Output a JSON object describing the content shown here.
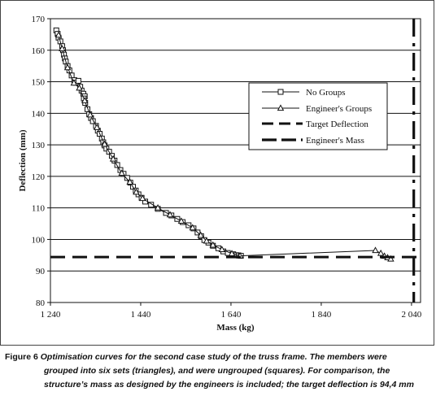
{
  "chart_data": {
    "type": "line",
    "xlabel": "Mass (kg)",
    "ylabel": "Deflection (mm)",
    "xlim": [
      1240,
      2060
    ],
    "ylim": [
      80,
      170
    ],
    "xticks": [
      1240,
      1440,
      1640,
      1840,
      2040
    ],
    "xtick_labels": [
      "1 240",
      "1 440",
      "1 640",
      "1 840",
      "2 040"
    ],
    "yticks": [
      80,
      90,
      100,
      110,
      120,
      130,
      140,
      150,
      160,
      170
    ],
    "grid": "horizontal",
    "legend_position": "right",
    "series": [
      {
        "name": "No Groups",
        "marker": "square",
        "points": [
          [
            1253,
            166.3
          ],
          [
            1256,
            165.2
          ],
          [
            1258,
            164.0
          ],
          [
            1262,
            162.8
          ],
          [
            1266,
            161.3
          ],
          [
            1268,
            160.0
          ],
          [
            1270,
            158.6
          ],
          [
            1272,
            157.4
          ],
          [
            1274,
            156.4
          ],
          [
            1278,
            155.0
          ],
          [
            1282,
            153.6
          ],
          [
            1287,
            152.0
          ],
          [
            1293,
            150.5
          ],
          [
            1296,
            149.7
          ],
          [
            1302,
            150.3
          ],
          [
            1306,
            148.4
          ],
          [
            1309,
            147.2
          ],
          [
            1313,
            146.2
          ],
          [
            1316,
            145.4
          ],
          [
            1314,
            144.7
          ],
          [
            1317,
            143.3
          ],
          [
            1322,
            141.3
          ],
          [
            1326,
            139.7
          ],
          [
            1330,
            138.5
          ],
          [
            1334,
            137.5
          ],
          [
            1341,
            136.0
          ],
          [
            1345,
            134.5
          ],
          [
            1349,
            133.5
          ],
          [
            1354,
            132.0
          ],
          [
            1357,
            130.8
          ],
          [
            1360,
            129.8
          ],
          [
            1364,
            128.8
          ],
          [
            1370,
            127.8
          ],
          [
            1376,
            126.5
          ],
          [
            1382,
            125.0
          ],
          [
            1388,
            123.6
          ],
          [
            1395,
            122.0
          ],
          [
            1402,
            120.8
          ],
          [
            1410,
            119.5
          ],
          [
            1417,
            118.0
          ],
          [
            1423,
            116.7
          ],
          [
            1429,
            115.5
          ],
          [
            1435,
            114.3
          ],
          [
            1442,
            113.2
          ],
          [
            1450,
            112.0
          ],
          [
            1463,
            111.0
          ],
          [
            1478,
            109.7
          ],
          [
            1496,
            108.4
          ],
          [
            1508,
            107.6
          ],
          [
            1521,
            106.5
          ],
          [
            1533,
            105.5
          ],
          [
            1546,
            104.5
          ],
          [
            1557,
            103.5
          ],
          [
            1566,
            102.2
          ],
          [
            1574,
            101.0
          ],
          [
            1581,
            99.8
          ],
          [
            1590,
            99.0
          ],
          [
            1600,
            98.0
          ],
          [
            1612,
            97.2
          ],
          [
            1623,
            96.2
          ],
          [
            1633,
            95.7
          ],
          [
            1645,
            95.3
          ],
          [
            1652,
            95.0
          ],
          [
            1657,
            94.9
          ],
          [
            1662,
            94.8
          ]
        ]
      },
      {
        "name": "Engineer's Groups",
        "marker": "triangle",
        "points": [
          [
            1258,
            164.8
          ],
          [
            1266,
            160.5
          ],
          [
            1278,
            154.5
          ],
          [
            1292,
            149.6
          ],
          [
            1304,
            148.0
          ],
          [
            1316,
            144.0
          ],
          [
            1328,
            139.5
          ],
          [
            1343,
            135.5
          ],
          [
            1360,
            130.2
          ],
          [
            1379,
            125.5
          ],
          [
            1398,
            121.0
          ],
          [
            1416,
            118.2
          ],
          [
            1430,
            115.0
          ],
          [
            1444,
            113.0
          ],
          [
            1478,
            110.0
          ],
          [
            1505,
            107.8
          ],
          [
            1530,
            105.8
          ],
          [
            1555,
            103.7
          ],
          [
            1573,
            101.3
          ],
          [
            1586,
            99.5
          ],
          [
            1600,
            98.2
          ],
          [
            1620,
            96.8
          ],
          [
            1642,
            95.5
          ],
          [
            1660,
            94.8
          ],
          [
            1960,
            96.5
          ],
          [
            1972,
            95.6
          ],
          [
            1980,
            94.7
          ],
          [
            1987,
            94.2
          ],
          [
            1994,
            93.8
          ]
        ]
      },
      {
        "name": "Target Deflection",
        "style": "dashed-horizontal",
        "y": 94.4
      },
      {
        "name": "Engineer's Mass",
        "style": "dash-dot-vertical",
        "x": 2045
      }
    ]
  },
  "caption": {
    "label": "Figure 6",
    "line1": "Optimisation curves for the second case study of the truss frame. The members were",
    "line2": "grouped into six sets (triangles), and were ungrouped (squares). For comparison, the",
    "line3": "structure’s mass as designed by the engineers is included; the target deflection is 94,4 mm"
  }
}
